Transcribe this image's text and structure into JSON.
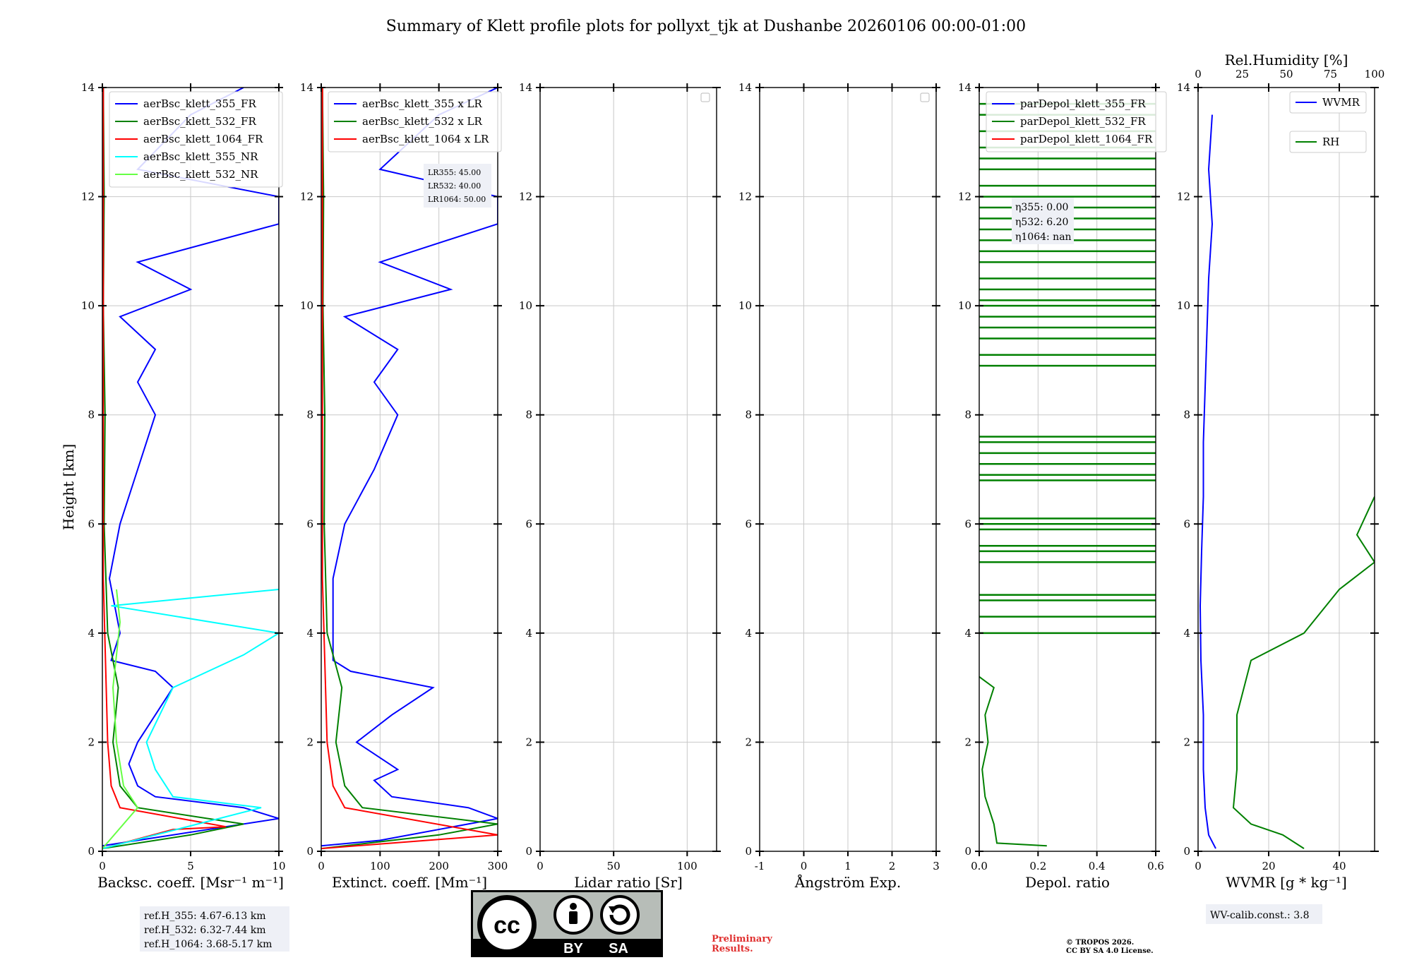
{
  "title": "Summary of Klett profile plots for pollyxt_tjk at Dushanbe 20260106 00:00-01:00",
  "chart_data": [
    {
      "type": "line",
      "xlabel": "Backsc. coeff. [Msr⁻¹ m⁻¹]",
      "ylabel": "Height [km]",
      "xlim": [
        0,
        10
      ],
      "xticks": [
        0,
        5,
        10
      ],
      "ylim": [
        0,
        14
      ],
      "yticks": [
        0,
        2,
        4,
        6,
        8,
        10,
        12,
        14
      ],
      "legend": [
        "aerBsc_klett_355_FR",
        "aerBsc_klett_532_FR",
        "aerBsc_klett_1064_FR",
        "aerBsc_klett_355_NR",
        "aerBsc_klett_532_NR"
      ],
      "series": [
        {
          "name": "aerBsc_klett_355_FR",
          "color": "#0000ff",
          "profile": [
            [
              0,
              0.1
            ],
            [
              2,
              0.2
            ],
            [
              10,
              0.6
            ],
            [
              8,
              0.8
            ],
            [
              3,
              1.0
            ],
            [
              2,
              1.2
            ],
            [
              1.5,
              1.6
            ],
            [
              2,
              2.0
            ],
            [
              3,
              2.5
            ],
            [
              4,
              3.0
            ],
            [
              3,
              3.3
            ],
            [
              0.5,
              3.5
            ],
            [
              1,
              4.0
            ],
            [
              0.4,
              5.0
            ],
            [
              1,
              6.0
            ],
            [
              2,
              7.0
            ],
            [
              3,
              8.0
            ],
            [
              2,
              8.6
            ],
            [
              3,
              9.2
            ],
            [
              1,
              9.8
            ],
            [
              5,
              10.3
            ],
            [
              2,
              10.8
            ],
            [
              10,
              11.5
            ],
            [
              10,
              12.0
            ],
            [
              2,
              12.5
            ],
            [
              5,
              13.5
            ],
            [
              8,
              14.0
            ]
          ]
        },
        {
          "name": "aerBsc_klett_532_FR",
          "color": "#008000",
          "profile": [
            [
              0,
              0.05
            ],
            [
              5,
              0.3
            ],
            [
              8,
              0.5
            ],
            [
              2,
              0.8
            ],
            [
              1,
              1.2
            ],
            [
              0.6,
              2.0
            ],
            [
              0.9,
              3.0
            ],
            [
              0.3,
              4.0
            ],
            [
              0.1,
              6.0
            ],
            [
              0.15,
              8.0
            ],
            [
              0.05,
              10.0
            ],
            [
              0.1,
              12.0
            ],
            [
              0.05,
              14.0
            ]
          ]
        },
        {
          "name": "aerBsc_klett_1064_FR",
          "color": "#ff0000",
          "profile": [
            [
              0,
              0.05
            ],
            [
              4,
              0.4
            ],
            [
              7,
              0.45
            ],
            [
              1,
              0.8
            ],
            [
              0.5,
              1.2
            ],
            [
              0.3,
              2.0
            ],
            [
              0.05,
              5.0
            ],
            [
              0.05,
              14.0
            ]
          ]
        },
        {
          "name": "aerBsc_klett_355_NR",
          "color": "#00ffff",
          "profile": [
            [
              0,
              0.05
            ],
            [
              9,
              0.8
            ],
            [
              4,
              1.0
            ],
            [
              3,
              1.5
            ],
            [
              2.5,
              2.0
            ],
            [
              4,
              3.0
            ],
            [
              8,
              3.6
            ],
            [
              10,
              4.0
            ],
            [
              0.5,
              4.5
            ],
            [
              10,
              4.8
            ]
          ]
        },
        {
          "name": "aerBsc_klett_532_NR",
          "color": "#66ff44",
          "profile": [
            [
              0,
              0.05
            ],
            [
              2,
              0.8
            ],
            [
              1.2,
              1.2
            ],
            [
              0.8,
              2.0
            ],
            [
              0.6,
              3.0
            ],
            [
              1,
              4.2
            ],
            [
              0.8,
              4.8
            ]
          ]
        }
      ],
      "annotation": [
        "ref.H_355: 4.67-6.13 km",
        "ref.H_532: 6.32-7.44 km",
        "ref.H_1064: 3.68-5.17 km"
      ]
    },
    {
      "type": "line",
      "xlabel": "Extinct. coeff. [Mm⁻¹]",
      "xlim": [
        0,
        300
      ],
      "xticks": [
        0,
        100,
        200,
        300
      ],
      "ylim": [
        0,
        14
      ],
      "yticks": [
        0,
        2,
        4,
        6,
        8,
        10,
        12,
        14
      ],
      "legend": [
        "aerBsc_klett_355 x LR",
        "aerBsc_klett_532 x LR",
        "aerBsc_klett_1064 x LR"
      ],
      "series": [
        {
          "name": "aerBsc_klett_355 x LR",
          "color": "#0000ff",
          "profile": [
            [
              0,
              0.1
            ],
            [
              100,
              0.2
            ],
            [
              300,
              0.6
            ],
            [
              250,
              0.8
            ],
            [
              120,
              1.0
            ],
            [
              90,
              1.3
            ],
            [
              130,
              1.5
            ],
            [
              60,
              2.0
            ],
            [
              120,
              2.5
            ],
            [
              190,
              3.0
            ],
            [
              50,
              3.3
            ],
            [
              20,
              3.5
            ],
            [
              20,
              4.0
            ],
            [
              20,
              5.0
            ],
            [
              40,
              6.0
            ],
            [
              90,
              7.0
            ],
            [
              130,
              8.0
            ],
            [
              90,
              8.6
            ],
            [
              130,
              9.2
            ],
            [
              40,
              9.8
            ],
            [
              220,
              10.3
            ],
            [
              100,
              10.8
            ],
            [
              300,
              11.5
            ],
            [
              300,
              12.0
            ],
            [
              100,
              12.5
            ],
            [
              200,
              13.5
            ],
            [
              300,
              14.0
            ]
          ]
        },
        {
          "name": "aerBsc_klett_532 x LR",
          "color": "#008000",
          "profile": [
            [
              0,
              0.05
            ],
            [
              200,
              0.3
            ],
            [
              300,
              0.5
            ],
            [
              70,
              0.8
            ],
            [
              40,
              1.2
            ],
            [
              25,
              2.0
            ],
            [
              35,
              3.0
            ],
            [
              10,
              4.0
            ],
            [
              5,
              6.0
            ],
            [
              6,
              8.0
            ],
            [
              3,
              10.0
            ],
            [
              4,
              12.0
            ],
            [
              2,
              14.0
            ]
          ]
        },
        {
          "name": "aerBsc_klett_1064 x LR",
          "color": "#ff0000",
          "profile": [
            [
              0,
              0.05
            ],
            [
              300,
              0.3
            ],
            [
              40,
              0.8
            ],
            [
              20,
              1.2
            ],
            [
              10,
              2.0
            ],
            [
              2,
              5.0
            ],
            [
              2,
              14.0
            ]
          ]
        }
      ],
      "annotation": [
        "LR355: 45.00",
        "LR532: 40.00",
        "LR1064: 50.00"
      ]
    },
    {
      "type": "line",
      "xlabel": "Lidar ratio [Sr]",
      "xlim": [
        0,
        120
      ],
      "xticks": [
        0,
        50,
        100
      ],
      "ylim": [
        0,
        14
      ],
      "yticks": [
        0,
        2,
        4,
        6,
        8,
        10,
        12,
        14
      ],
      "legend": [],
      "series": []
    },
    {
      "type": "line",
      "xlabel": "Ångström Exp.",
      "xlim": [
        -1,
        3
      ],
      "xticks": [
        -1,
        0,
        1,
        2,
        3
      ],
      "ylim": [
        0,
        14
      ],
      "yticks": [
        0,
        2,
        4,
        6,
        8,
        10,
        12,
        14
      ],
      "legend": [],
      "series": []
    },
    {
      "type": "line",
      "xlabel": "Depol. ratio",
      "xlim": [
        0,
        0.6
      ],
      "xticks": [
        "0.0",
        "0.2",
        "0.4",
        "0.6"
      ],
      "ylim": [
        0,
        14
      ],
      "yticks": [
        0,
        2,
        4,
        6,
        8,
        10,
        12,
        14
      ],
      "legend": [
        "parDepol_klett_355_FR",
        "parDepol_klett_532_FR",
        "parDepol_klett_1064_FR"
      ],
      "series": [
        {
          "name": "parDepol_klett_532_FR",
          "color": "#008000",
          "profile": [
            [
              0.23,
              0.1
            ],
            [
              0.06,
              0.15
            ],
            [
              0.05,
              0.5
            ],
            [
              0.02,
              1.0
            ],
            [
              0.01,
              1.5
            ],
            [
              0.03,
              2.0
            ],
            [
              0.02,
              2.5
            ],
            [
              0.05,
              3.0
            ],
            [
              0,
              3.2
            ]
          ],
          "spikes_km": [
            4.0,
            4.3,
            4.6,
            4.7,
            5.3,
            5.5,
            5.6,
            5.9,
            6.0,
            6.1,
            6.8,
            6.9,
            7.1,
            7.3,
            7.5,
            7.6,
            8.9,
            9.1,
            9.4,
            9.6,
            9.8,
            10.0,
            10.1,
            10.3,
            10.5,
            10.8,
            11.0,
            11.2,
            11.4,
            11.6,
            11.8,
            12.0,
            12.2,
            12.5,
            12.7,
            12.9,
            13.2,
            13.5,
            13.7
          ]
        }
      ],
      "annotation": [
        "η355: 0.00",
        "η532: 6.20",
        "η1064: nan"
      ]
    },
    {
      "type": "line",
      "xlabel": "WVMR [g * kg⁻¹]",
      "xlim": [
        0,
        50
      ],
      "xticks": [
        0,
        20,
        40
      ],
      "ylim": [
        0,
        14
      ],
      "yticks": [
        0,
        2,
        4,
        6,
        8,
        10,
        12,
        14
      ],
      "secondary_x": {
        "label": "Rel.Humidity [%]",
        "ticks": [
          0,
          25,
          50,
          75,
          100
        ],
        "lim": [
          0,
          100
        ]
      },
      "legend": [
        "WVMR",
        "RH"
      ],
      "series": [
        {
          "name": "WVMR",
          "color": "#0000ff",
          "profile": [
            [
              5,
              0.05
            ],
            [
              3,
              0.3
            ],
            [
              2,
              0.8
            ],
            [
              1.5,
              1.5
            ],
            [
              1.5,
              2.5
            ],
            [
              0.8,
              3.5
            ],
            [
              0.6,
              4.5
            ],
            [
              1,
              5.5
            ],
            [
              1.5,
              6.5
            ],
            [
              1.5,
              7.5
            ],
            [
              2,
              8.5
            ],
            [
              2.5,
              9.5
            ],
            [
              3,
              10.5
            ],
            [
              4,
              11.5
            ],
            [
              3,
              12.5
            ],
            [
              4,
              13.5
            ]
          ]
        },
        {
          "name": "RH",
          "color": "#008000",
          "profile": [
            [
              60,
              0.05
            ],
            [
              48,
              0.3
            ],
            [
              30,
              0.5
            ],
            [
              20,
              0.8
            ],
            [
              22,
              1.5
            ],
            [
              22,
              2.5
            ],
            [
              30,
              3.5
            ],
            [
              60,
              4.0
            ],
            [
              80,
              4.8
            ],
            [
              100,
              5.3
            ],
            [
              90,
              5.8
            ],
            [
              100,
              6.5
            ]
          ]
        }
      ],
      "annotation": [
        "WV-calib.const.: 3.8"
      ]
    }
  ],
  "footer": {
    "cc_by": "BY",
    "cc_sa": "SA",
    "preliminary_1": "Preliminary",
    "preliminary_2": "Results.",
    "copyright_1": "© TROPOS 2026.",
    "copyright_2": "CC BY SA 4.0 License."
  }
}
